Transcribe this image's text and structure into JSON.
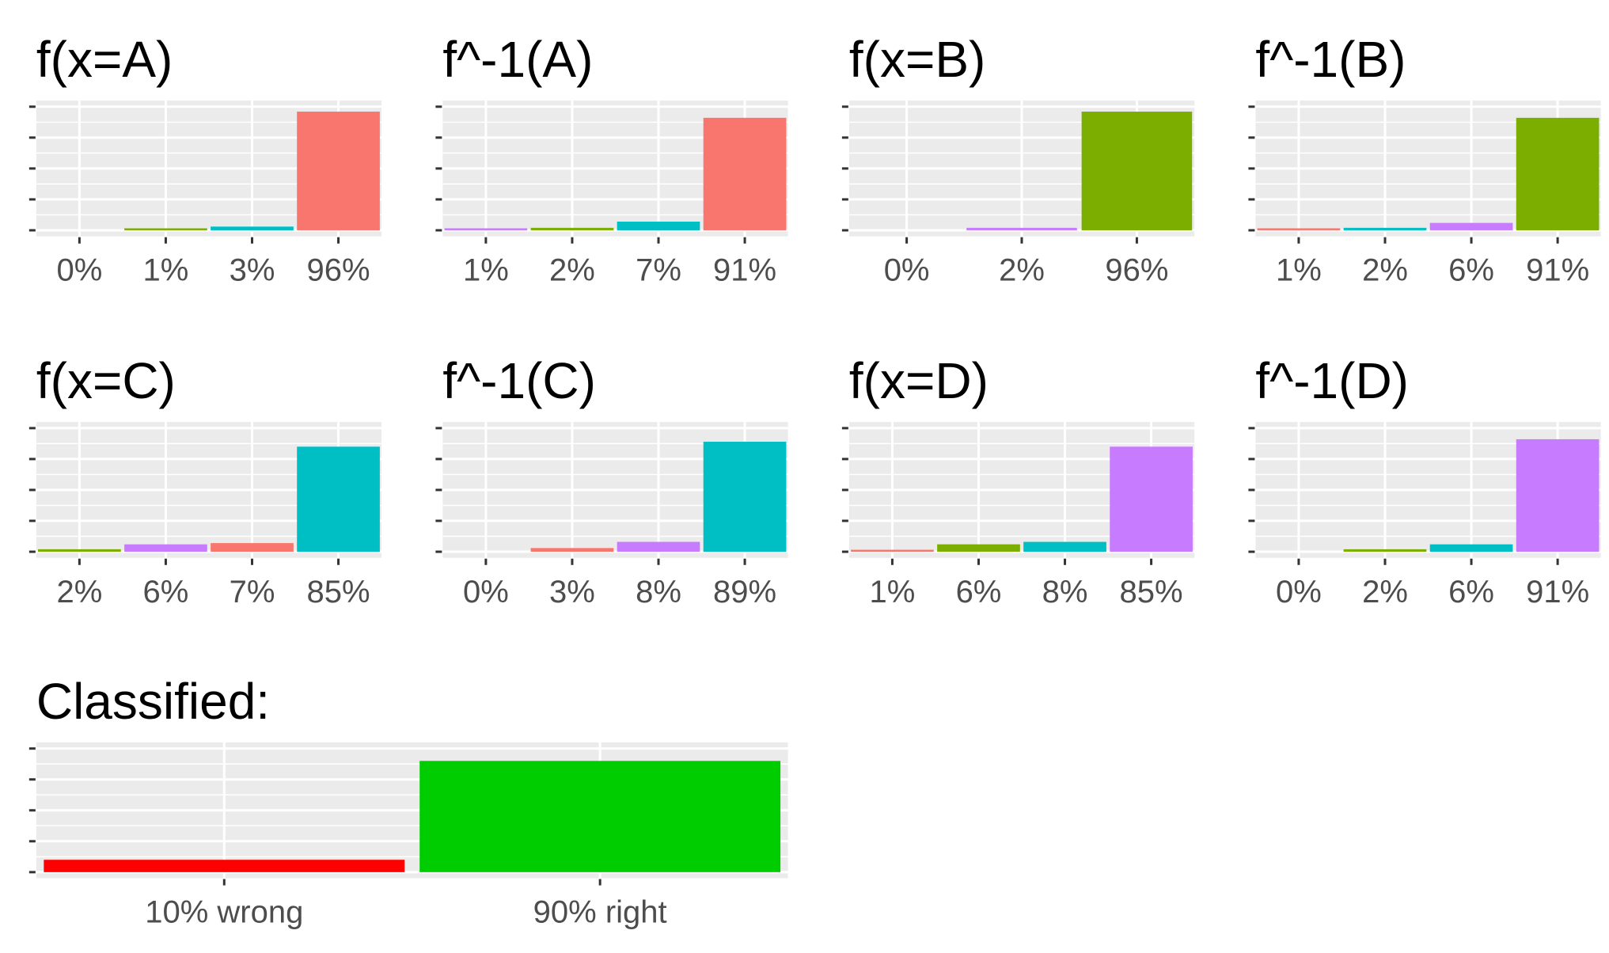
{
  "chart_data": [
    {
      "type": "bar",
      "title": "f(x=A)",
      "categories": [
        "0%",
        "1%",
        "3%",
        "96%"
      ],
      "values": [
        0,
        1,
        3,
        96
      ],
      "colors": [
        "#C77CFF",
        "#7CAE00",
        "#00BFC4",
        "#F8766D"
      ],
      "ylim": [
        0,
        100
      ],
      "grid": true
    },
    {
      "type": "bar",
      "title": "f^-1(A)",
      "categories": [
        "1%",
        "2%",
        "7%",
        "91%"
      ],
      "values": [
        1,
        2,
        7,
        91
      ],
      "colors": [
        "#C77CFF",
        "#7CAE00",
        "#00BFC4",
        "#F8766D"
      ],
      "ylim": [
        0,
        100
      ],
      "grid": true
    },
    {
      "type": "bar",
      "title": "f(x=B)",
      "categories": [
        "0%",
        "2%",
        "96%"
      ],
      "values": [
        0,
        2,
        96
      ],
      "colors": [
        "#00BFC4",
        "#C77CFF",
        "#7CAE00"
      ],
      "ylim": [
        0,
        100
      ],
      "grid": true
    },
    {
      "type": "bar",
      "title": "f^-1(B)",
      "categories": [
        "1%",
        "2%",
        "6%",
        "91%"
      ],
      "values": [
        1,
        2,
        6,
        91
      ],
      "colors": [
        "#F8766D",
        "#00BFC4",
        "#C77CFF",
        "#7CAE00"
      ],
      "ylim": [
        0,
        100
      ],
      "grid": true
    },
    {
      "type": "bar",
      "title": "f(x=C)",
      "categories": [
        "2%",
        "6%",
        "7%",
        "85%"
      ],
      "values": [
        2,
        6,
        7,
        85
      ],
      "colors": [
        "#7CAE00",
        "#C77CFF",
        "#F8766D",
        "#00BFC4"
      ],
      "ylim": [
        0,
        100
      ],
      "grid": true
    },
    {
      "type": "bar",
      "title": "f^-1(C)",
      "categories": [
        "0%",
        "3%",
        "8%",
        "89%"
      ],
      "values": [
        0,
        3,
        8,
        89
      ],
      "colors": [
        "#7CAE00",
        "#F8766D",
        "#C77CFF",
        "#00BFC4"
      ],
      "ylim": [
        0,
        100
      ],
      "grid": true
    },
    {
      "type": "bar",
      "title": "f(x=D)",
      "categories": [
        "1%",
        "6%",
        "8%",
        "85%"
      ],
      "values": [
        1,
        6,
        8,
        85
      ],
      "colors": [
        "#F8766D",
        "#7CAE00",
        "#00BFC4",
        "#C77CFF"
      ],
      "ylim": [
        0,
        100
      ],
      "grid": true
    },
    {
      "type": "bar",
      "title": "f^-1(D)",
      "categories": [
        "0%",
        "2%",
        "6%",
        "91%"
      ],
      "values": [
        0,
        2,
        6,
        91
      ],
      "colors": [
        "#F8766D",
        "#7CAE00",
        "#00BFC4",
        "#C77CFF"
      ],
      "ylim": [
        0,
        100
      ],
      "grid": true
    },
    {
      "type": "bar",
      "title": "Classified:",
      "categories": [
        "10% wrong",
        "90% right"
      ],
      "values": [
        10,
        90
      ],
      "colors": [
        "#FF0000",
        "#00CD00"
      ],
      "ylim": [
        0,
        100
      ],
      "grid": true
    }
  ]
}
